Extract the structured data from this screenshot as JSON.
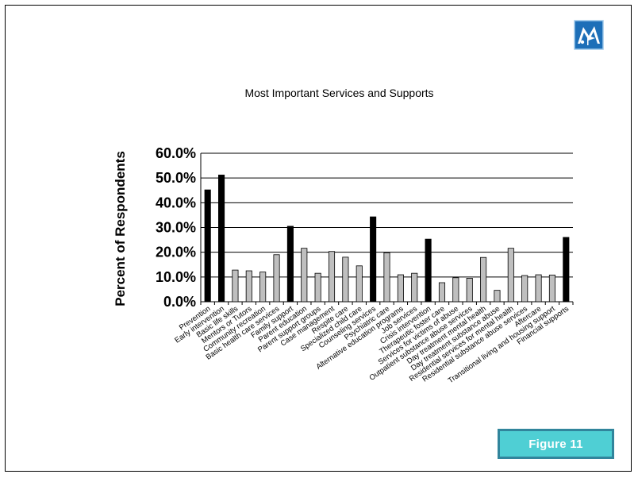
{
  "figure_label": "Figure 11",
  "logo": {
    "icon": "mountain-flag-logo",
    "bg": "#1d6fb8"
  },
  "colors": {
    "highlight": "#000000",
    "normal": "#bfbfbf",
    "outline": "#000000",
    "grid": "#000000",
    "badge_bg": "#4fcfd4",
    "badge_border": "#31859c"
  },
  "chart_data": {
    "type": "bar",
    "title": "Most Important Services and Supports",
    "ylabel": "Percent of Respondents",
    "xlabel": "",
    "ylim": [
      0,
      60
    ],
    "yticks": [
      "0.0%",
      "10.0%",
      "20.0%",
      "30.0%",
      "40.0%",
      "50.0%",
      "60.0%"
    ],
    "grid": true,
    "legend": "none",
    "categories": [
      "Prevention",
      "Early intervention",
      "Basic life skills",
      "Mentors or Tutors",
      "Community recreation",
      "Basic health care services",
      "Family support",
      "Parent education",
      "Parent support groups",
      "Case management",
      "Respite care",
      "Specialized child care",
      "Counseling services",
      "Psychiatric care",
      "Alternative education programs",
      "Job services",
      "Crisis intervention",
      "Therapeutic foster care",
      "Services for victims of abuse",
      "Outpatient substance abuse services",
      "Day treatment mental health",
      "Day treatment substance abuse",
      "Residential services for mental health",
      "Residential substance abuse services",
      "Aftercare",
      "Transitional living and housing support",
      "Financial supports"
    ],
    "values": [
      45.2,
      51.2,
      12.8,
      12.5,
      12.0,
      19.0,
      30.5,
      21.6,
      11.5,
      20.3,
      18.0,
      14.5,
      34.3,
      19.8,
      10.9,
      11.5,
      25.3,
      7.7,
      9.7,
      9.5,
      17.9,
      4.6,
      21.6,
      10.6,
      10.9,
      10.8,
      26.0
    ],
    "highlighted": [
      true,
      true,
      false,
      false,
      false,
      false,
      true,
      false,
      false,
      false,
      false,
      false,
      true,
      false,
      false,
      false,
      true,
      false,
      false,
      false,
      false,
      false,
      false,
      false,
      false,
      false,
      true
    ]
  }
}
